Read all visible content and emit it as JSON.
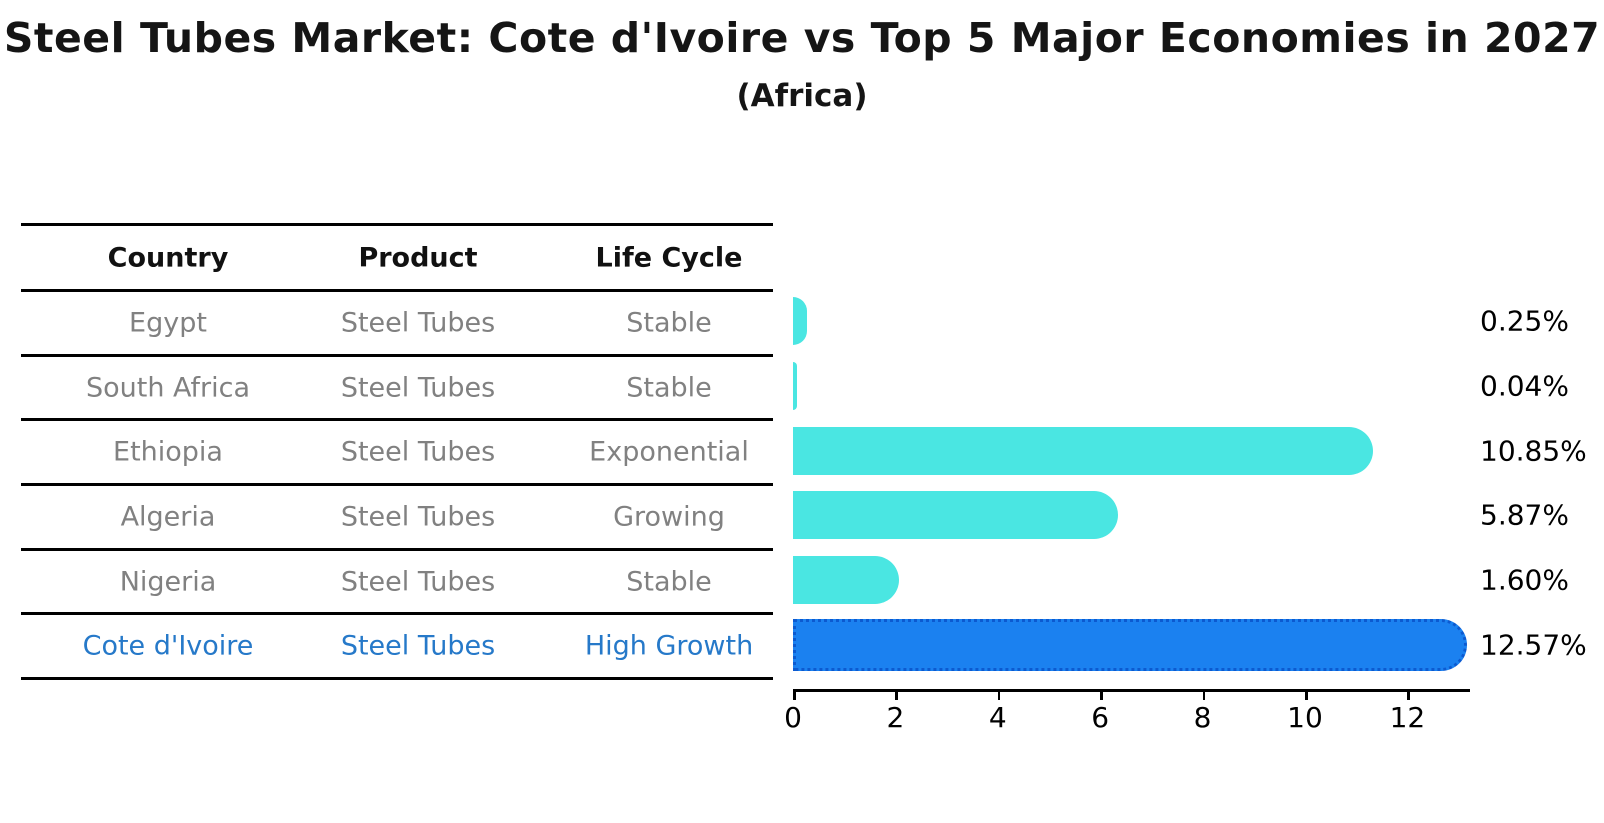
{
  "title": "Steel Tubes Market: Cote d'Ivoire vs Top 5 Major Economies in 2027",
  "subtitle": "(Africa)",
  "table": {
    "headers": [
      "Country",
      "Product",
      "Life Cycle"
    ],
    "rows": [
      {
        "country": "Egypt",
        "product": "Steel Tubes",
        "life_cycle": "Stable",
        "highlight": false
      },
      {
        "country": "South Africa",
        "product": "Steel Tubes",
        "life_cycle": "Stable",
        "highlight": false
      },
      {
        "country": "Ethiopia",
        "product": "Steel Tubes",
        "life_cycle": "Exponential",
        "highlight": false
      },
      {
        "country": "Algeria",
        "product": "Steel Tubes",
        "life_cycle": "Growing",
        "highlight": false
      },
      {
        "country": "Nigeria",
        "product": "Steel Tubes",
        "life_cycle": "Stable",
        "highlight": true
      }
    ]
  },
  "chart_data": {
    "type": "bar",
    "orientation": "horizontal",
    "categories": [
      "Egypt",
      "South Africa",
      "Ethiopia",
      "Algeria",
      "Nigeria",
      "Cote d'Ivoire"
    ],
    "values": [
      0.25,
      0.04,
      10.85,
      5.87,
      1.6,
      12.57
    ],
    "value_labels": [
      "0.25%",
      "0.04%",
      "10.85%",
      "5.87%",
      "1.60%",
      "12.57%"
    ],
    "title": "Steel Tubes Market: Cote d'Ivoire vs Top 5 Major Economies in 2027",
    "subtitle": "(Africa)",
    "xlabel": "",
    "ylabel": "",
    "x_ticks": [
      0,
      2,
      4,
      6,
      8,
      10,
      12
    ],
    "xlim": [
      0,
      13.2
    ],
    "grid": false,
    "legend": false,
    "highlight_index": 5,
    "colors": {
      "bar": "#4ae6e2",
      "highlight_bar": "#1b81f0",
      "highlight_bar_border": "#0c5ad0",
      "highlight_text": "#2679c9",
      "row_text": "#818181",
      "header_text": "#111111",
      "axis": "#000000"
    }
  }
}
